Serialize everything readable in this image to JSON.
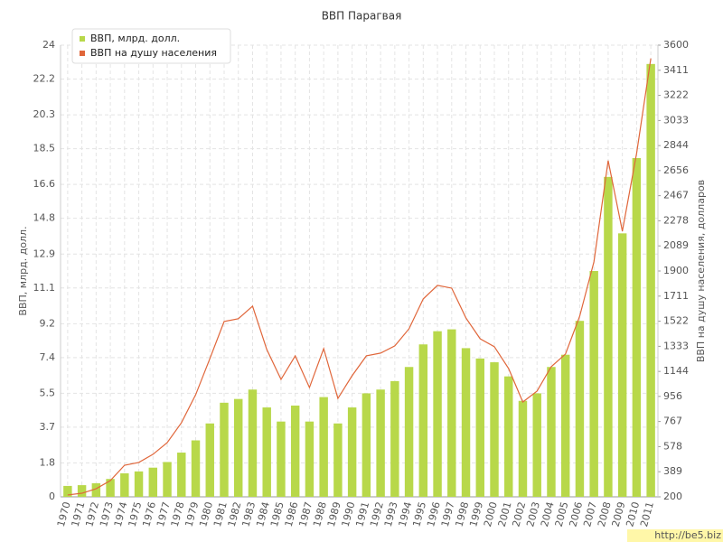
{
  "chart_data": {
    "type": "bar_line",
    "title": "ВВП Парагвая",
    "y_label": "ВВП, млрд. долл.",
    "y2_label": "ВВП на душу населения, долларов",
    "watermark": "http://be5.biz",
    "categories": [
      "1970",
      "1971",
      "1972",
      "1973",
      "1974",
      "1975",
      "1976",
      "1977",
      "1978",
      "1979",
      "1980",
      "1981",
      "1982",
      "1983",
      "1984",
      "1985",
      "1986",
      "1987",
      "1988",
      "1989",
      "1990",
      "1991",
      "1992",
      "1993",
      "1994",
      "1995",
      "1996",
      "1997",
      "1998",
      "1999",
      "2000",
      "2001",
      "2002",
      "2003",
      "2004",
      "2005",
      "2006",
      "2007",
      "2008",
      "2009",
      "2010",
      "2011"
    ],
    "series": [
      {
        "name": "ВВП, млрд. долл.",
        "color": "#b8d84a",
        "kind": "bar",
        "axis": "y",
        "values": [
          0.58,
          0.62,
          0.72,
          0.95,
          1.25,
          1.35,
          1.55,
          1.85,
          2.35,
          3.0,
          3.9,
          5.0,
          5.2,
          5.7,
          4.75,
          4.0,
          4.85,
          4.0,
          5.3,
          3.9,
          4.75,
          5.5,
          5.7,
          6.15,
          6.9,
          8.1,
          8.8,
          8.9,
          7.9,
          7.35,
          7.15,
          6.4,
          5.1,
          5.5,
          6.9,
          7.55,
          9.35,
          12.0,
          17.0,
          14.0,
          18.0,
          23.0
        ]
      },
      {
        "name": "ВВП на душу населения",
        "color": "#e0663a",
        "kind": "line",
        "axis": "y2",
        "values": [
          214,
          227,
          261,
          322,
          438,
          459,
          520,
          608,
          758,
          969,
          1241,
          1520,
          1541,
          1635,
          1309,
          1084,
          1261,
          1023,
          1316,
          941,
          1112,
          1261,
          1282,
          1336,
          1465,
          1690,
          1792,
          1771,
          1547,
          1390,
          1330,
          1166,
          914,
          996,
          1180,
          1275,
          1560,
          1969,
          2731,
          2200,
          2785,
          3500
        ]
      }
    ],
    "ylim": [
      0,
      24
    ],
    "yticks": [
      0,
      1.8,
      3.7,
      5.5,
      7.4,
      9.2,
      11.1,
      12.9,
      14.8,
      16.6,
      18.5,
      20.3,
      22.2,
      24
    ],
    "y2lim": [
      200,
      3600
    ],
    "y2ticks": [
      200,
      389,
      578,
      767,
      956,
      1144,
      1333,
      1522,
      1711,
      1900,
      2089,
      2278,
      2467,
      2656,
      2844,
      3033,
      3222,
      3411,
      3600
    ],
    "grid": true,
    "legend": "top-left"
  }
}
